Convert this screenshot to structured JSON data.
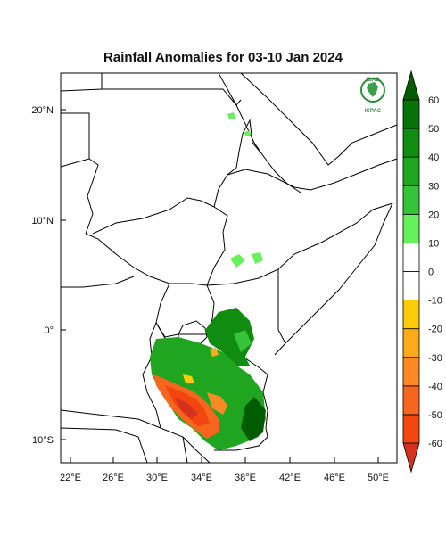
{
  "title": "Rainfall Anomalies for 03-10 Jan 2024",
  "logo": {
    "top_text": "IGAD",
    "bottom_text": "ICPAC"
  },
  "map": {
    "lat_labels": [
      {
        "deg": 20,
        "text": "20°N"
      },
      {
        "deg": 10,
        "text": "10°N"
      },
      {
        "deg": 0,
        "text": "0°"
      },
      {
        "deg": -10,
        "text": "10°S"
      }
    ],
    "lon_labels": [
      {
        "deg": 22,
        "text": "22°E"
      },
      {
        "deg": 26,
        "text": "26°E"
      },
      {
        "deg": 30,
        "text": "30°E"
      },
      {
        "deg": 34,
        "text": "34°E"
      },
      {
        "deg": 38,
        "text": "38°E"
      },
      {
        "deg": 42,
        "text": "42°E"
      },
      {
        "deg": 46,
        "text": "46°E"
      },
      {
        "deg": 50,
        "text": "50°E"
      }
    ]
  },
  "colorbar": {
    "labels": [
      "60",
      "50",
      "40",
      "30",
      "20",
      "10",
      "0",
      "-10",
      "-20",
      "-30",
      "-40",
      "-50",
      "-60"
    ],
    "colors": [
      "#d6301f",
      "#f2460e",
      "#f7661e",
      "#fb8a25",
      "#fbab17",
      "#fecc07",
      "#ffffff",
      "#ffffff",
      "#66f05b",
      "#35c339",
      "#1fa51f",
      "#108c10",
      "#087308",
      "#005c00"
    ]
  }
}
